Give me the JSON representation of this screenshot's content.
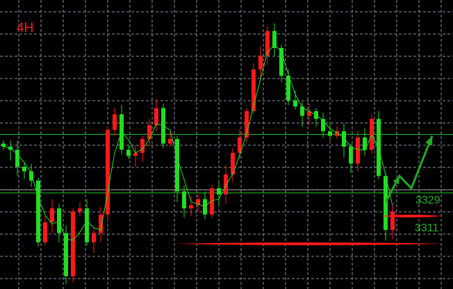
{
  "chart_data": {
    "type": "candlestick",
    "timeframe_label": "4H",
    "title": "",
    "xlabel": "",
    "ylabel": "",
    "ylim": [
      3282,
      3455
    ],
    "grid": true,
    "colors": {
      "up": "#ff1a1a",
      "down": "#22dd22",
      "ma": "#22dd22",
      "grid": "#8a93a0",
      "background": "#000000",
      "annotation_red": "#ff1a1a",
      "annotation_green": "#22aa22"
    },
    "closes": [
      3374,
      3372,
      3361,
      3358,
      3352,
      3312,
      3325,
      3334,
      3318,
      3290,
      3332,
      3334,
      3312,
      3318,
      3330,
      3385,
      3395,
      3372,
      3368,
      3370,
      3379,
      3388,
      3399,
      3376,
      3379,
      3345,
      3334,
      3336,
      3340,
      3330,
      3347,
      3343,
      3356,
      3370,
      3380,
      3397,
      3424,
      3433,
      3449,
      3438,
      3420,
      3404,
      3400,
      3394,
      3397,
      3392,
      3384,
      3381,
      3384,
      3374,
      3363,
      3380,
      3372,
      3392,
      3355,
      3320,
      3332
    ],
    "horizontal_lines": [
      {
        "price": 3382,
        "color": "#22cc22"
      },
      {
        "price": 3346,
        "color": "#9a9a9a"
      },
      {
        "price": 3344,
        "color": "#22cc22"
      }
    ],
    "levels": [
      {
        "price": 3329,
        "label": "3329",
        "from_index": 54.3,
        "to_index": 63.3
      },
      {
        "price": 3311,
        "label": "3311",
        "from_index": 24.7,
        "to_index": 63.5
      }
    ],
    "projection_arrow": [
      [
        55.0,
        3338
      ],
      [
        57.0,
        3355
      ],
      [
        58.7,
        3347
      ],
      [
        61.7,
        3381
      ]
    ]
  }
}
